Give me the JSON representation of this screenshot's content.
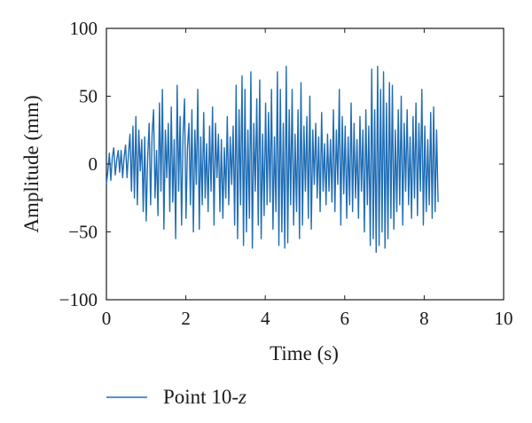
{
  "chart_data": {
    "type": "line",
    "title": "",
    "xlabel": "Time (s)",
    "ylabel": "Amplitude (mm)",
    "xlim": [
      0,
      10
    ],
    "ylim": [
      -100,
      100
    ],
    "x_ticks": [
      0,
      2,
      4,
      6,
      8,
      10
    ],
    "y_ticks": [
      -100,
      -50,
      0,
      50,
      100
    ],
    "x_tick_labels": [
      "0",
      "2",
      "4",
      "6",
      "8",
      "10"
    ],
    "y_tick_labels": [
      "−100",
      "−50",
      "0",
      "50",
      "100"
    ],
    "grid": false,
    "legend_position": "bottom",
    "series": [
      {
        "name_prefix": "Point 10-",
        "name_suffix": "z",
        "color": "#1f6db5",
        "x_start": 0,
        "x_end": 8.35,
        "values": [
          -15,
          -5,
          8,
          -12,
          5,
          12,
          -8,
          3,
          10,
          -6,
          10,
          -10,
          5,
          14,
          -10,
          8,
          22,
          -20,
          28,
          -25,
          35,
          -30,
          25,
          -5,
          18,
          -35,
          20,
          -42,
          5,
          30,
          -30,
          22,
          40,
          -25,
          10,
          -38,
          45,
          -20,
          55,
          -48,
          25,
          -10,
          30,
          -35,
          42,
          -28,
          18,
          -55,
          58,
          -20,
          35,
          -45,
          22,
          48,
          -40,
          12,
          30,
          -30,
          40,
          -50,
          25,
          -15,
          55,
          -48,
          20,
          -30,
          38,
          -25,
          15,
          -35,
          28,
          -20,
          42,
          -45,
          30,
          -10,
          22,
          -35,
          18,
          -40,
          12,
          -25,
          35,
          -30,
          20,
          -15,
          28,
          -45,
          58,
          -55,
          40,
          -30,
          65,
          -60,
          55,
          -50,
          25,
          -40,
          68,
          -62,
          30,
          -20,
          48,
          -45,
          62,
          -55,
          22,
          -38,
          45,
          -30,
          38,
          -28,
          55,
          -48,
          20,
          -35,
          68,
          -60,
          55,
          -50,
          30,
          -62,
          72,
          -58,
          40,
          -30,
          55,
          -45,
          22,
          -35,
          40,
          -55,
          60,
          -45,
          28,
          -20,
          35,
          -40,
          50,
          -48,
          25,
          -15,
          30,
          -25,
          20,
          -35,
          38,
          -20,
          15,
          -30,
          22,
          -20,
          18,
          -28,
          40,
          -35,
          25,
          -15,
          55,
          -45,
          35,
          -22,
          28,
          -40,
          20,
          -30,
          45,
          -35,
          30,
          -25,
          18,
          -40,
          35,
          -20,
          25,
          -50,
          40,
          -30,
          28,
          -60,
          70,
          -55,
          40,
          -65,
          72,
          -60,
          55,
          -50,
          68,
          -62,
          45,
          -55,
          60,
          -40,
          58,
          -48,
          25,
          -35,
          40,
          -30,
          50,
          -45,
          30,
          -20,
          40,
          -30,
          20,
          -40,
          35,
          -25,
          45,
          -38,
          30,
          -20,
          55,
          -45,
          28,
          -35,
          18,
          -30,
          38,
          -40,
          42,
          -35,
          25,
          -28
        ]
      }
    ]
  },
  "legend": {
    "label_prefix": "Point 10-",
    "label_suffix": "z"
  }
}
